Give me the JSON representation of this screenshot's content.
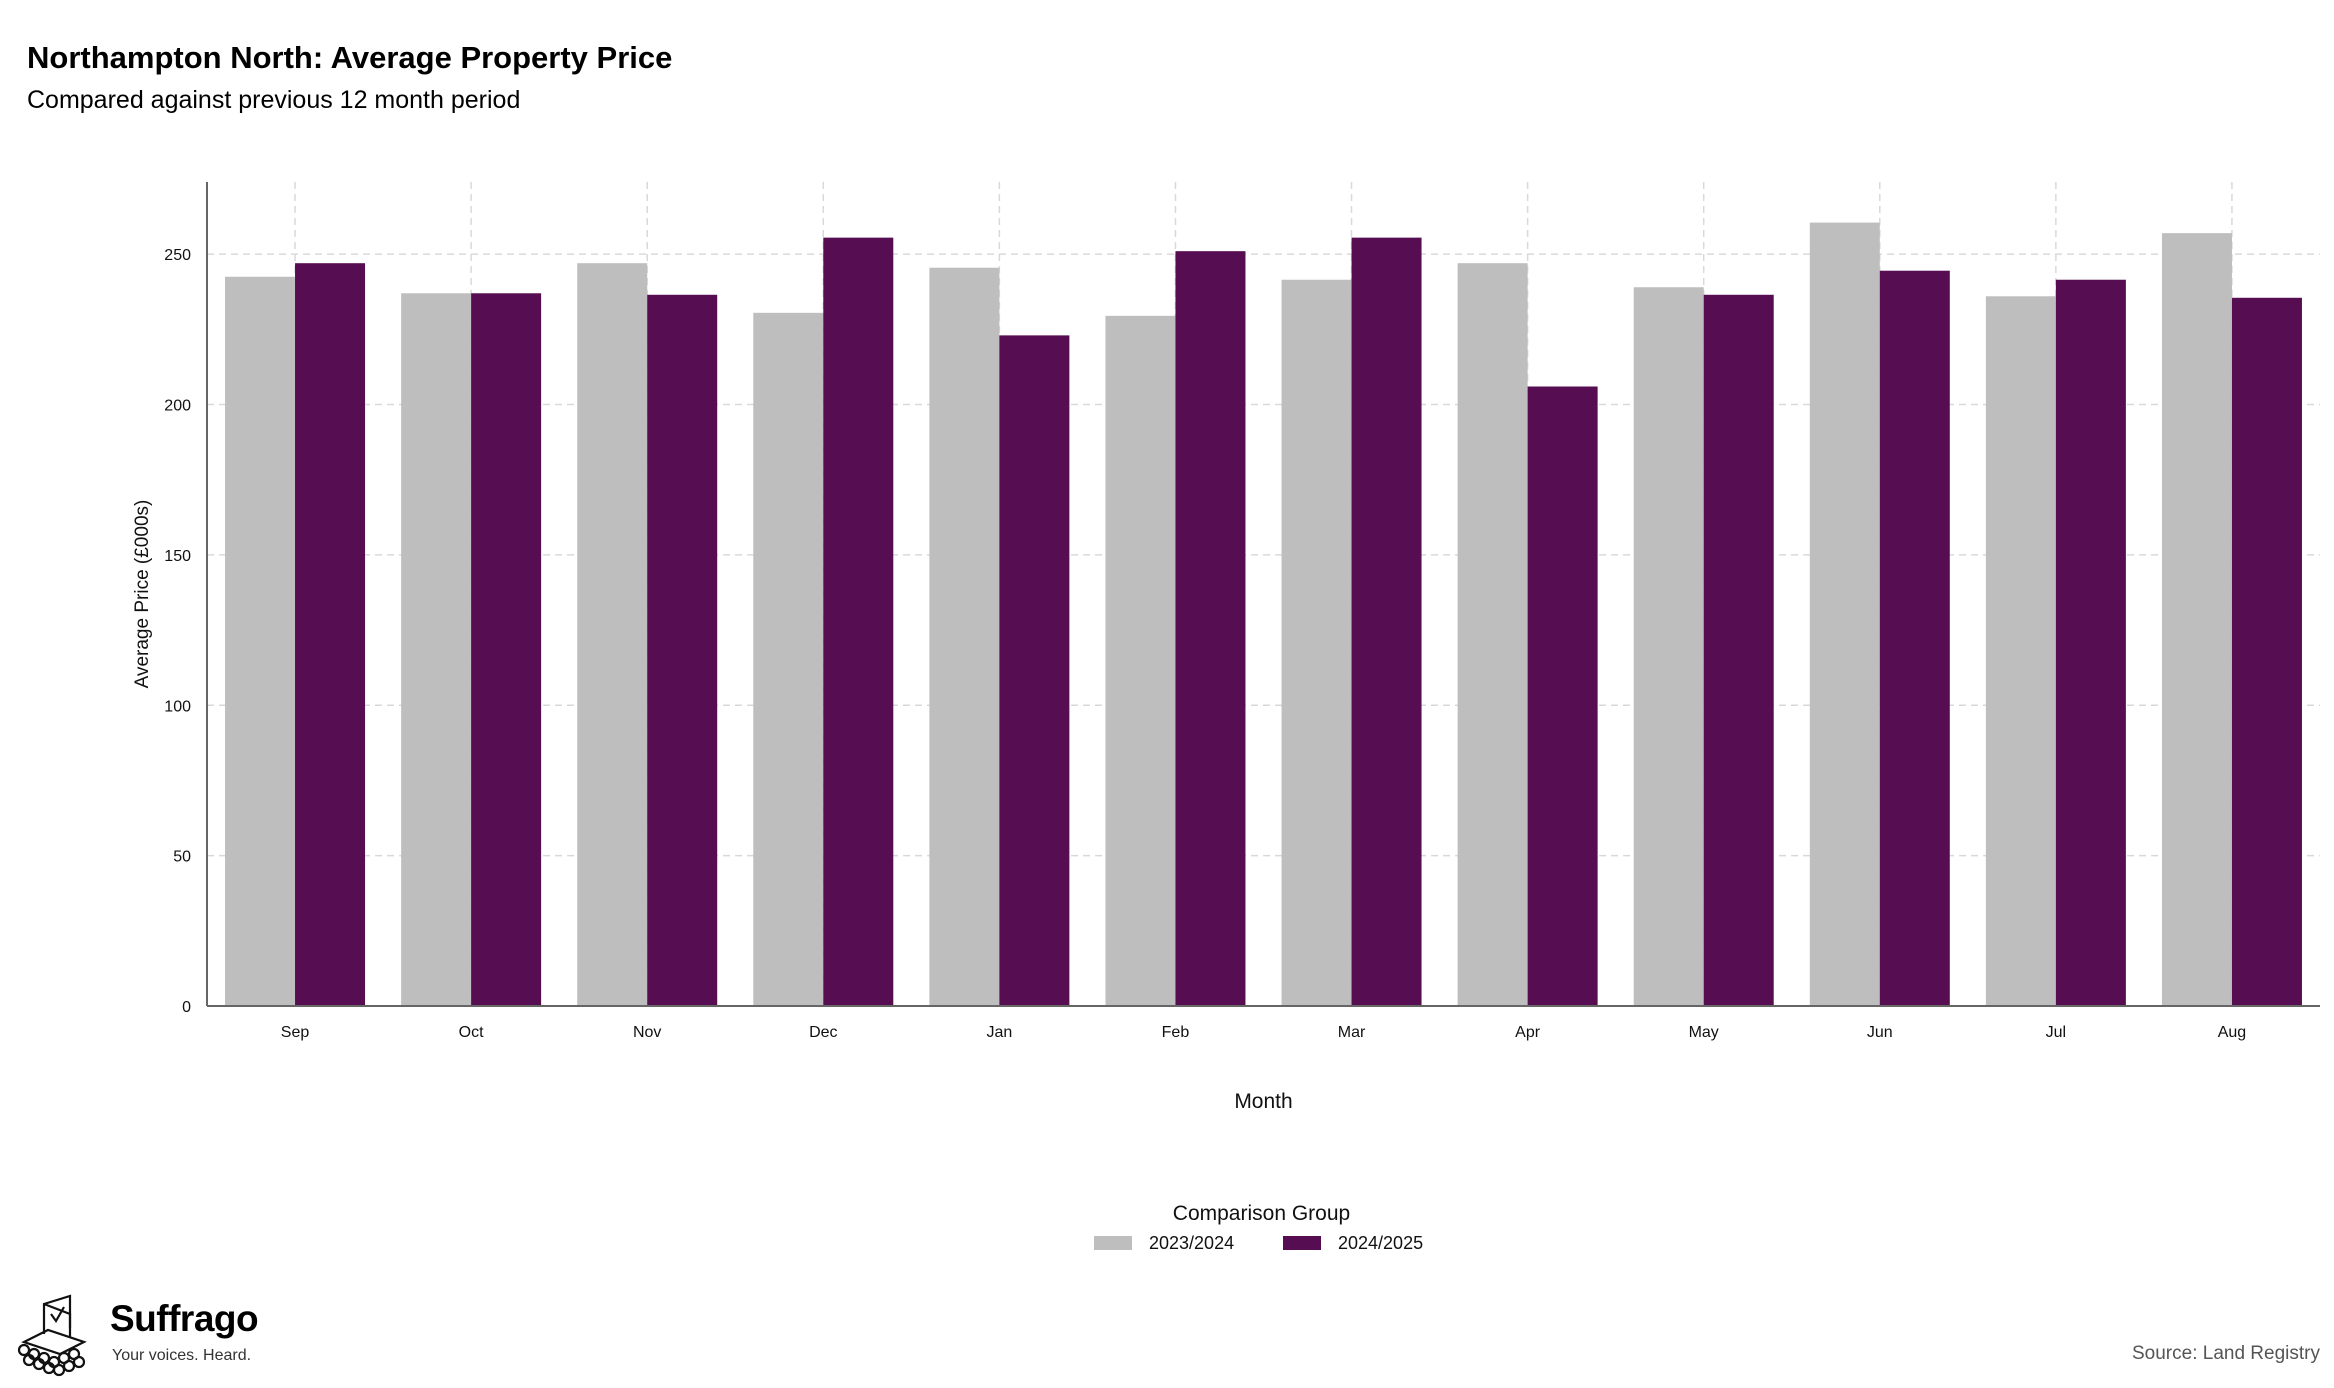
{
  "header": {
    "title": "Northampton North: Average Property Price",
    "subtitle": "Compared against previous 12 month period"
  },
  "footer": {
    "brand": "Suffrago",
    "tagline": "Your voices. Heard.",
    "source": "Source: Land Registry"
  },
  "chart_data": {
    "type": "bar",
    "categories": [
      "Sep",
      "Oct",
      "Nov",
      "Dec",
      "Jan",
      "Feb",
      "Mar",
      "Apr",
      "May",
      "Jun",
      "Jul",
      "Aug"
    ],
    "series": [
      {
        "name": "2023/2024",
        "color": "#bebebe",
        "values": [
          242.5,
          237,
          247,
          230.5,
          245.5,
          229.5,
          241.5,
          247,
          239,
          260.5,
          236,
          257
        ]
      },
      {
        "name": "2024/2025",
        "color": "#560d52",
        "values": [
          247,
          237,
          236.5,
          255.5,
          223,
          251,
          255.5,
          206,
          236.5,
          244.5,
          241.5,
          235.5
        ]
      }
    ],
    "xlabel": "Month",
    "ylabel": "Average Price (£000s)",
    "ylim": [
      0,
      274
    ],
    "yticks": [
      0,
      50,
      100,
      150,
      200,
      250
    ],
    "grid": true,
    "legend": {
      "title": "Comparison Group",
      "position": "bottom"
    }
  }
}
